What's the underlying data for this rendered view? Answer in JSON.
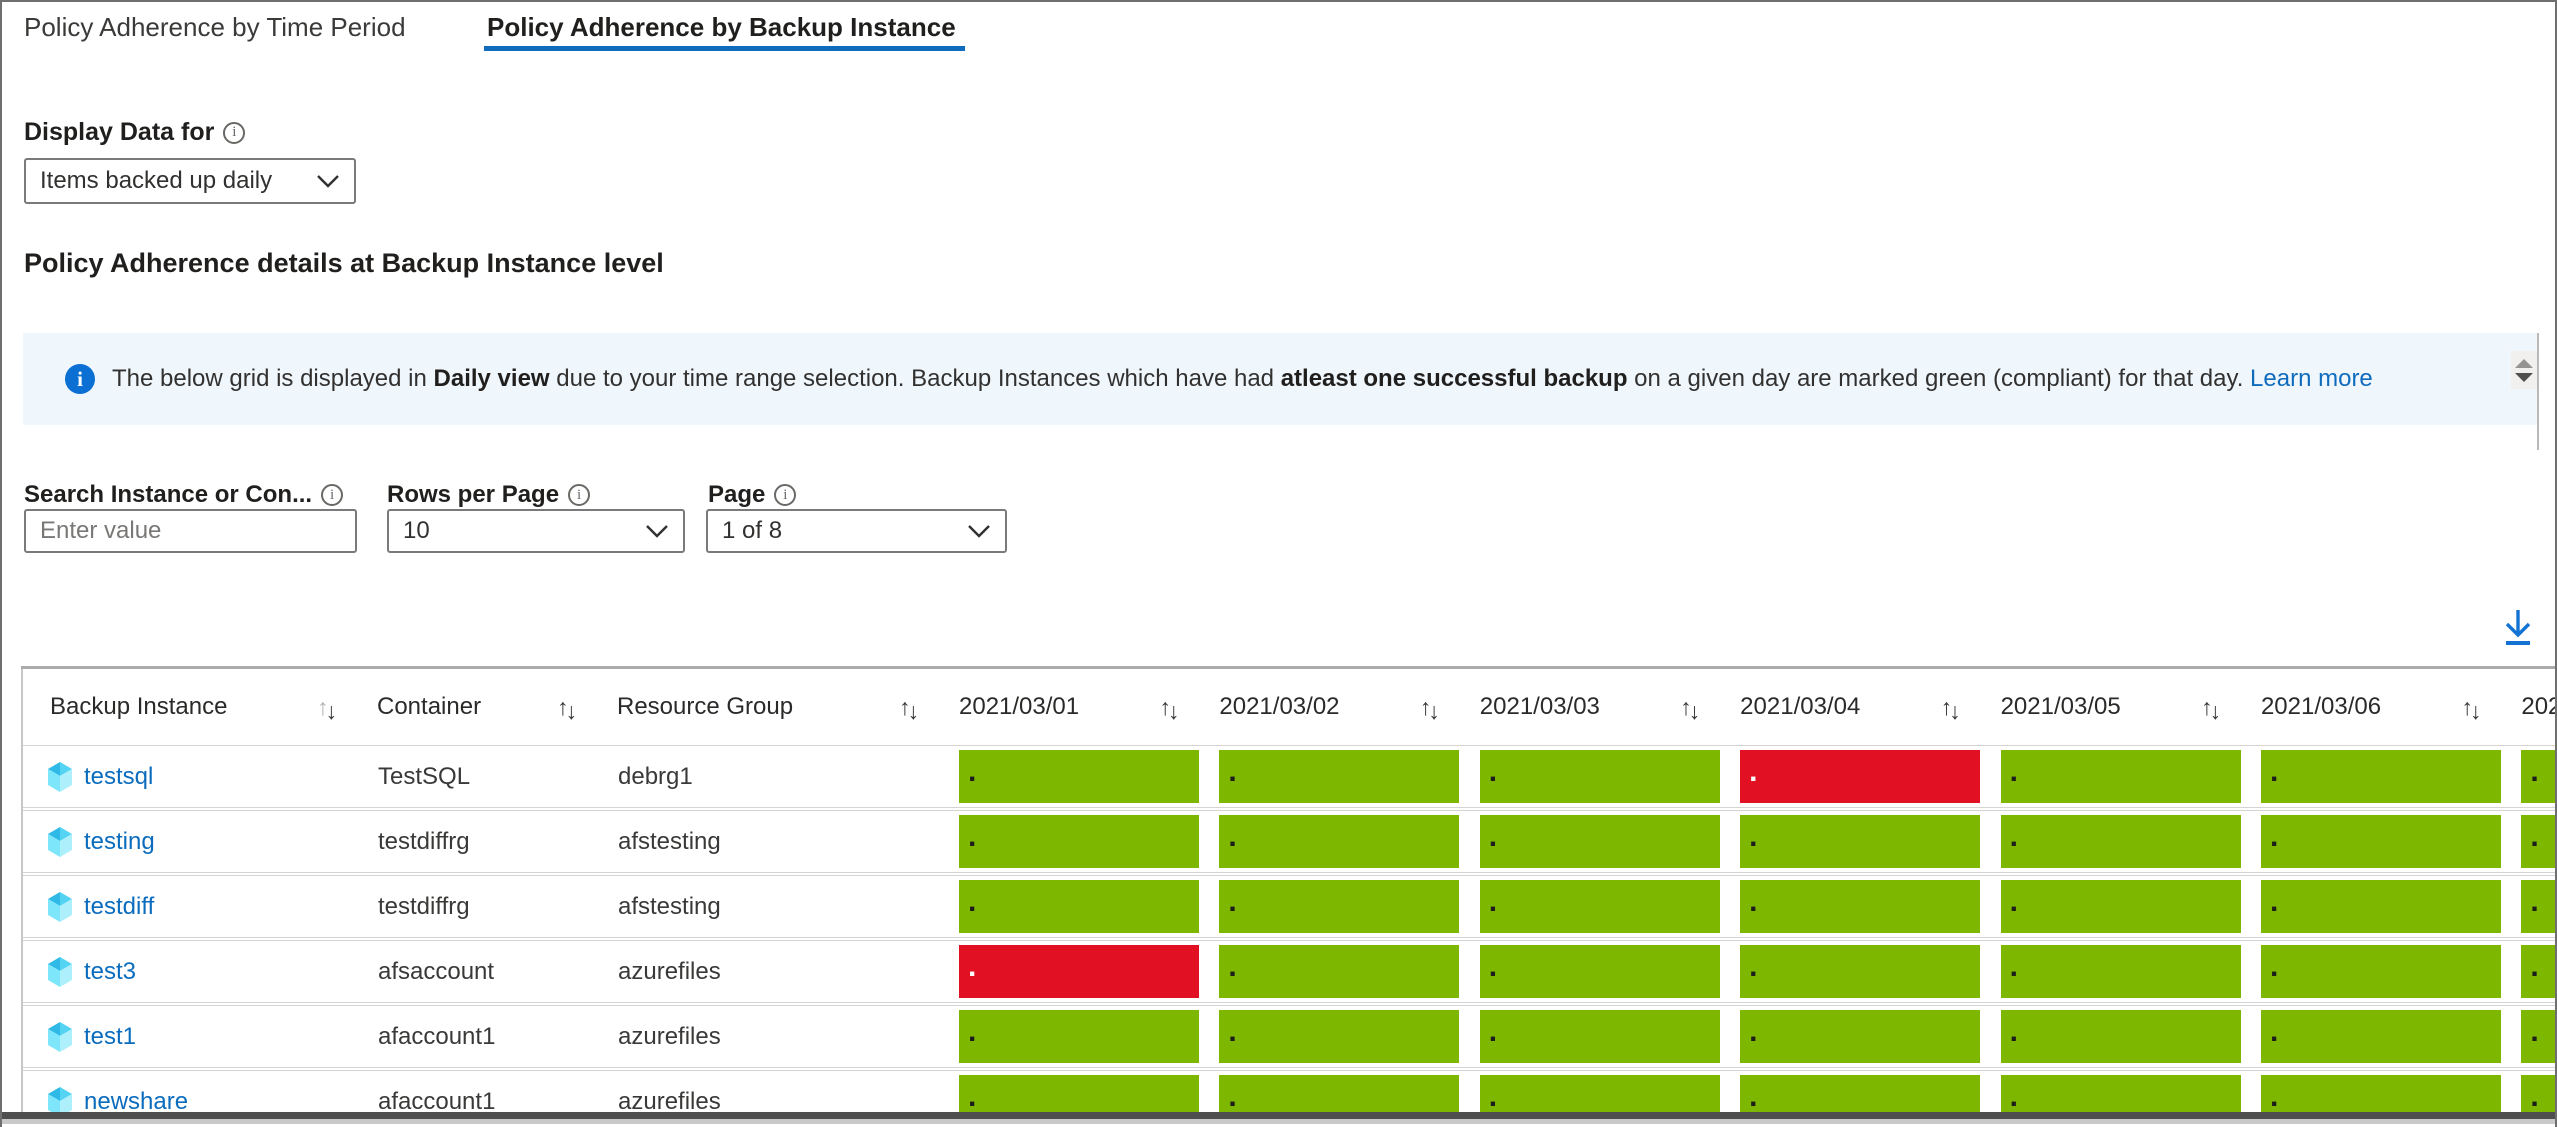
{
  "tabs": [
    {
      "label": "Policy Adherence by Time Period",
      "active": false
    },
    {
      "label": "Policy Adherence by Backup Instance",
      "active": true
    }
  ],
  "display_data": {
    "label": "Display Data for",
    "selected": "Items backed up daily"
  },
  "section_title": "Policy Adherence details at Backup Instance level",
  "banner": {
    "segments": [
      {
        "text": "The below grid is displayed in ",
        "bold": false
      },
      {
        "text": "Daily view",
        "bold": true
      },
      {
        "text": " due to your time range selection. Backup Instances which have had ",
        "bold": false
      },
      {
        "text": "atleast one successful backup",
        "bold": true
      },
      {
        "text": " on a given day are marked green (compliant) for that day. ",
        "bold": false
      }
    ],
    "link": "Learn more"
  },
  "filters": {
    "search": {
      "label": "Search Instance or Con...",
      "placeholder": "Enter value"
    },
    "rows_per_page": {
      "label": "Rows per Page",
      "value": "10"
    },
    "page": {
      "label": "Page",
      "value": "1 of 8"
    }
  },
  "toolbar": {
    "download_icon": "download"
  },
  "table": {
    "sort_up_glyph": "↑",
    "sort_down_glyph": "↓",
    "status_marker": ".",
    "columns": [
      {
        "label": "Backup Instance",
        "type": "text"
      },
      {
        "label": "Container",
        "type": "text"
      },
      {
        "label": "Resource Group",
        "type": "text"
      },
      {
        "label": "2021/03/01",
        "type": "date"
      },
      {
        "label": "2021/03/02",
        "type": "date"
      },
      {
        "label": "2021/03/03",
        "type": "date"
      },
      {
        "label": "2021/03/04",
        "type": "date"
      },
      {
        "label": "2021/03/05",
        "type": "date"
      },
      {
        "label": "2021/03/06",
        "type": "date"
      },
      {
        "label": "202",
        "type": "date"
      }
    ],
    "rows": [
      {
        "instance": "testsql",
        "container": "TestSQL",
        "resource_group": "debrg1",
        "statuses": [
          "green",
          "green",
          "green",
          "red",
          "green",
          "green",
          "green"
        ]
      },
      {
        "instance": "testing",
        "container": "testdiffrg",
        "resource_group": "afstesting",
        "statuses": [
          "green",
          "green",
          "green",
          "green",
          "green",
          "green",
          "green"
        ]
      },
      {
        "instance": "testdiff",
        "container": "testdiffrg",
        "resource_group": "afstesting",
        "statuses": [
          "green",
          "green",
          "green",
          "green",
          "green",
          "green",
          "green"
        ]
      },
      {
        "instance": "test3",
        "container": "afsaccount",
        "resource_group": "azurefiles",
        "statuses": [
          "red",
          "green",
          "green",
          "green",
          "green",
          "green",
          "green"
        ]
      },
      {
        "instance": "test1",
        "container": "afaccount1",
        "resource_group": "azurefiles",
        "statuses": [
          "green",
          "green",
          "green",
          "green",
          "green",
          "green",
          "green"
        ]
      },
      {
        "instance": "newshare",
        "container": "afaccount1",
        "resource_group": "azurefiles",
        "statuses": [
          "green",
          "green",
          "green",
          "green",
          "green",
          "green",
          "green"
        ]
      }
    ]
  },
  "colors": {
    "compliant_green": "#7db700",
    "noncompliant_red": "#e11123",
    "accent_blue": "#0f6cbd",
    "banner_bg": "#eff6fc"
  }
}
